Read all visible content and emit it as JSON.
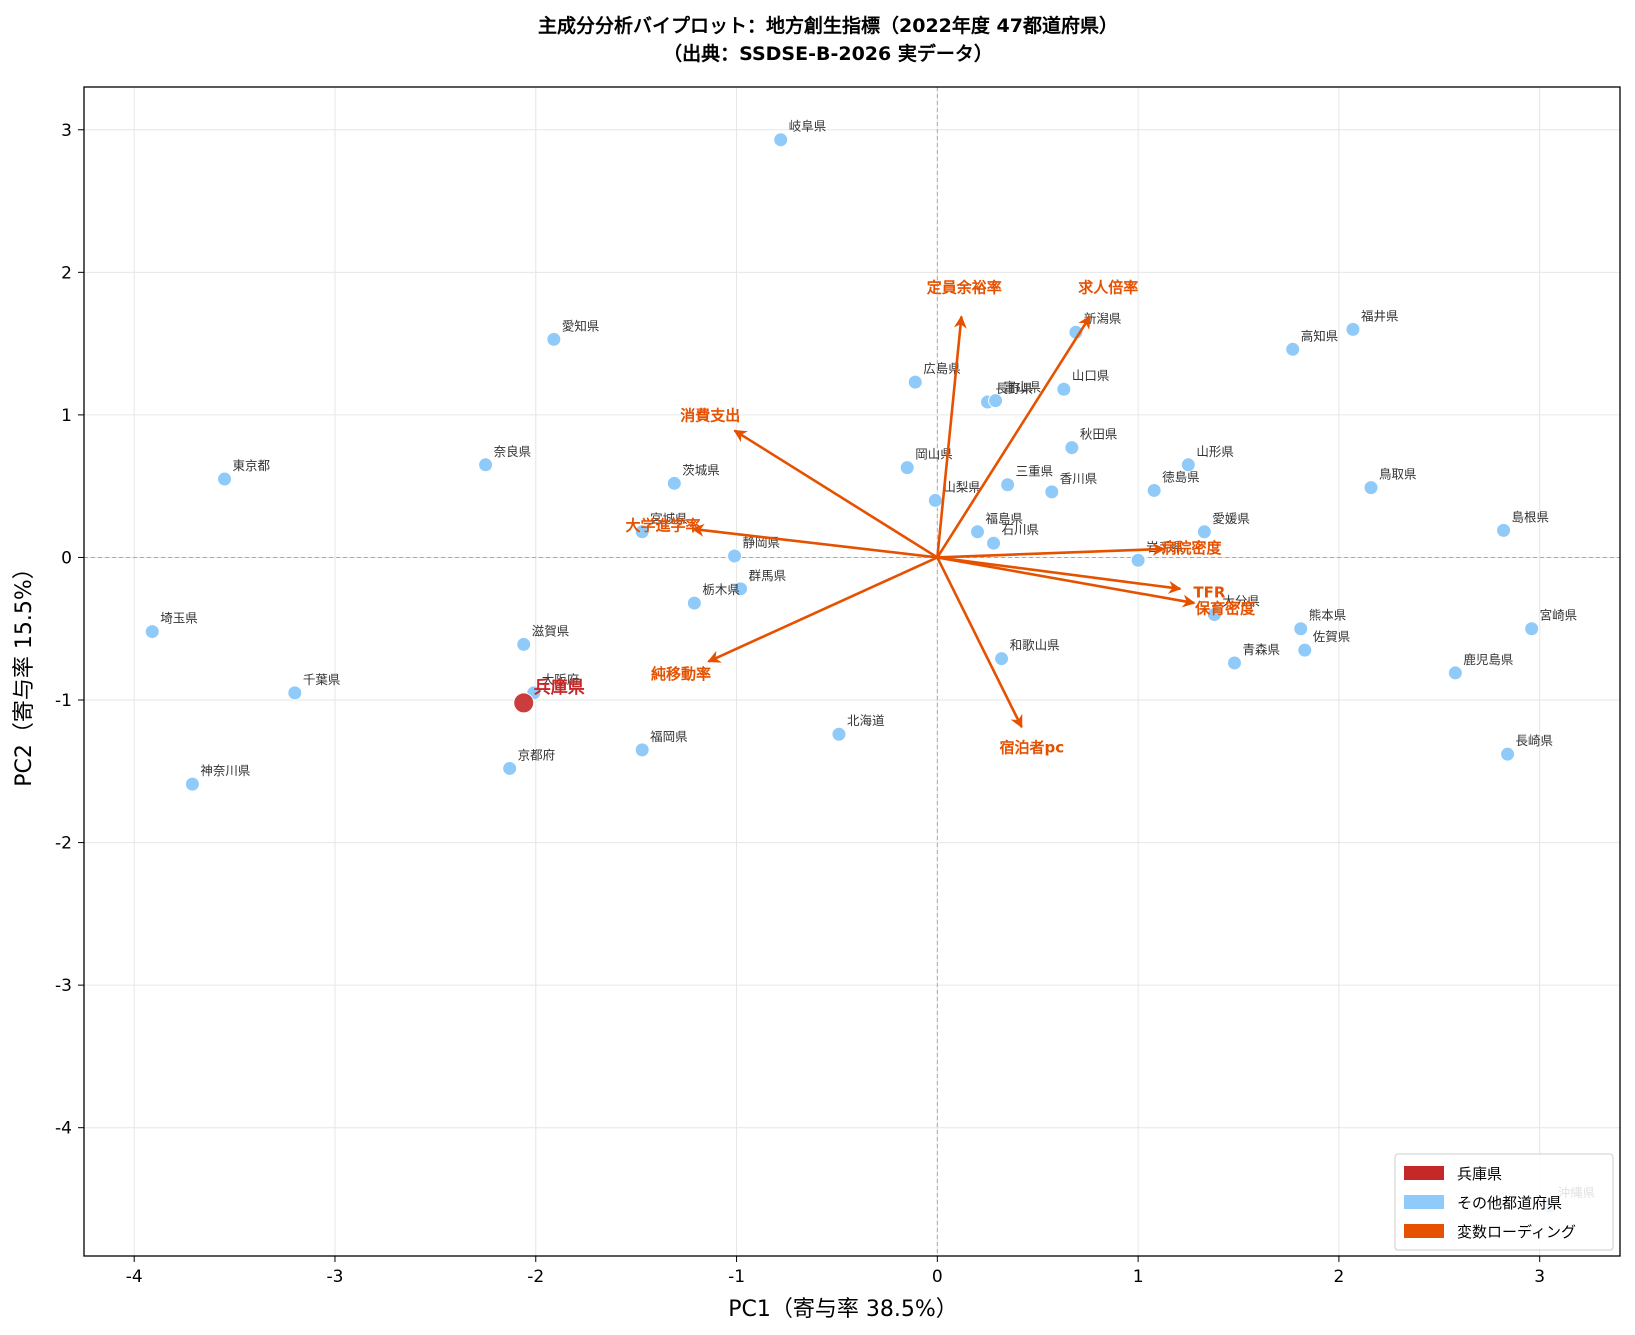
{
  "chart_data": {
    "type": "scatter",
    "title": [
      "主成分分析バイプロット：地方創生指標（2022年度 47都道府県）",
      "（出典：SSDSE-B-2026 実データ）"
    ],
    "xlabel": "PC1（寄与率 38.5%）",
    "ylabel": "PC2（寄与率 15.5%）",
    "xlim": [
      -4.25,
      3.4
    ],
    "ylim": [
      -4.9,
      3.3
    ],
    "xticks": [
      -4,
      -3,
      -2,
      -1,
      0,
      1,
      2,
      3
    ],
    "yticks": [
      -4,
      -3,
      -2,
      -1,
      0,
      1,
      2,
      3
    ],
    "grid": true,
    "legend_position": "lower-right",
    "colors": {
      "highlight": "#c62828",
      "others": "#90caf9",
      "loadings": "#e65100"
    },
    "legend": [
      {
        "label": "兵庫県",
        "color": "#c62828"
      },
      {
        "label": "その他都道府県",
        "color": "#90caf9"
      },
      {
        "label": "変数ローディング",
        "color": "#e65100"
      }
    ],
    "highlight": {
      "label": "兵庫県",
      "x": -2.06,
      "y": -1.02
    },
    "points": [
      {
        "label": "岐阜県",
        "x": -0.78,
        "y": 2.93
      },
      {
        "label": "愛知県",
        "x": -1.91,
        "y": 1.53
      },
      {
        "label": "新潟県",
        "x": 0.69,
        "y": 1.58
      },
      {
        "label": "福井県",
        "x": 2.07,
        "y": 1.6
      },
      {
        "label": "高知県",
        "x": 1.77,
        "y": 1.46
      },
      {
        "label": "広島県",
        "x": -0.11,
        "y": 1.23
      },
      {
        "label": "長野県",
        "x": 0.25,
        "y": 1.09
      },
      {
        "label": "富山県",
        "x": 0.29,
        "y": 1.1
      },
      {
        "label": "山口県",
        "x": 0.63,
        "y": 1.18
      },
      {
        "label": "秋田県",
        "x": 0.67,
        "y": 0.77
      },
      {
        "label": "東京都",
        "x": -3.55,
        "y": 0.55
      },
      {
        "label": "奈良県",
        "x": -2.25,
        "y": 0.65
      },
      {
        "label": "茨城県",
        "x": -1.31,
        "y": 0.52
      },
      {
        "label": "岡山県",
        "x": -0.15,
        "y": 0.63
      },
      {
        "label": "山形県",
        "x": 1.25,
        "y": 0.65
      },
      {
        "label": "三重県",
        "x": 0.35,
        "y": 0.51
      },
      {
        "label": "香川県",
        "x": 0.57,
        "y": 0.46
      },
      {
        "label": "徳島県",
        "x": 1.08,
        "y": 0.47
      },
      {
        "label": "鳥取県",
        "x": 2.16,
        "y": 0.49
      },
      {
        "label": "山梨県",
        "x": -0.01,
        "y": 0.4
      },
      {
        "label": "宮城県",
        "x": -1.47,
        "y": 0.18
      },
      {
        "label": "福島県",
        "x": 0.2,
        "y": 0.18
      },
      {
        "label": "石川県",
        "x": 0.28,
        "y": 0.1
      },
      {
        "label": "愛媛県",
        "x": 1.33,
        "y": 0.18
      },
      {
        "label": "島根県",
        "x": 2.82,
        "y": 0.19
      },
      {
        "label": "静岡県",
        "x": -1.01,
        "y": 0.01
      },
      {
        "label": "岩手県",
        "x": 1.0,
        "y": -0.02
      },
      {
        "label": "群馬県",
        "x": -0.98,
        "y": -0.22
      },
      {
        "label": "栃木県",
        "x": -1.21,
        "y": -0.32
      },
      {
        "label": "大分県",
        "x": 1.38,
        "y": -0.4
      },
      {
        "label": "熊本県",
        "x": 1.81,
        "y": -0.5
      },
      {
        "label": "宮崎県",
        "x": 2.96,
        "y": -0.5
      },
      {
        "label": "埼玉県",
        "x": -3.91,
        "y": -0.52
      },
      {
        "label": "滋賀県",
        "x": -2.06,
        "y": -0.61
      },
      {
        "label": "和歌山県",
        "x": 0.32,
        "y": -0.71
      },
      {
        "label": "青森県",
        "x": 1.48,
        "y": -0.74
      },
      {
        "label": "佐賀県",
        "x": 1.83,
        "y": -0.65
      },
      {
        "label": "鹿児島県",
        "x": 2.58,
        "y": -0.81
      },
      {
        "label": "千葉県",
        "x": -3.2,
        "y": -0.95
      },
      {
        "label": "大阪府",
        "x": -2.01,
        "y": -0.95
      },
      {
        "label": "北海道",
        "x": -0.49,
        "y": -1.24
      },
      {
        "label": "福岡県",
        "x": -1.47,
        "y": -1.35
      },
      {
        "label": "京都府",
        "x": -2.13,
        "y": -1.48
      },
      {
        "label": "長崎県",
        "x": 2.84,
        "y": -1.38
      },
      {
        "label": "神奈川県",
        "x": -3.71,
        "y": -1.59
      },
      {
        "label": "沖縄県",
        "x": 3.05,
        "y": -4.55
      }
    ],
    "loadings": [
      {
        "label": "定員余裕率",
        "x": 0.12,
        "y": 1.69
      },
      {
        "label": "求人倍率",
        "x": 0.76,
        "y": 1.69
      },
      {
        "label": "消費支出",
        "x": -1.01,
        "y": 0.89
      },
      {
        "label": "大学進学率",
        "x": -1.22,
        "y": 0.2
      },
      {
        "label": "病院密度",
        "x": 1.13,
        "y": 0.06
      },
      {
        "label": "TFR",
        "x": 1.21,
        "y": -0.22
      },
      {
        "label": "保育密度",
        "x": 1.28,
        "y": -0.32
      },
      {
        "label": "純移動率",
        "x": -1.14,
        "y": -0.73
      },
      {
        "label": "宿泊者pc",
        "x": 0.42,
        "y": -1.19
      }
    ]
  }
}
